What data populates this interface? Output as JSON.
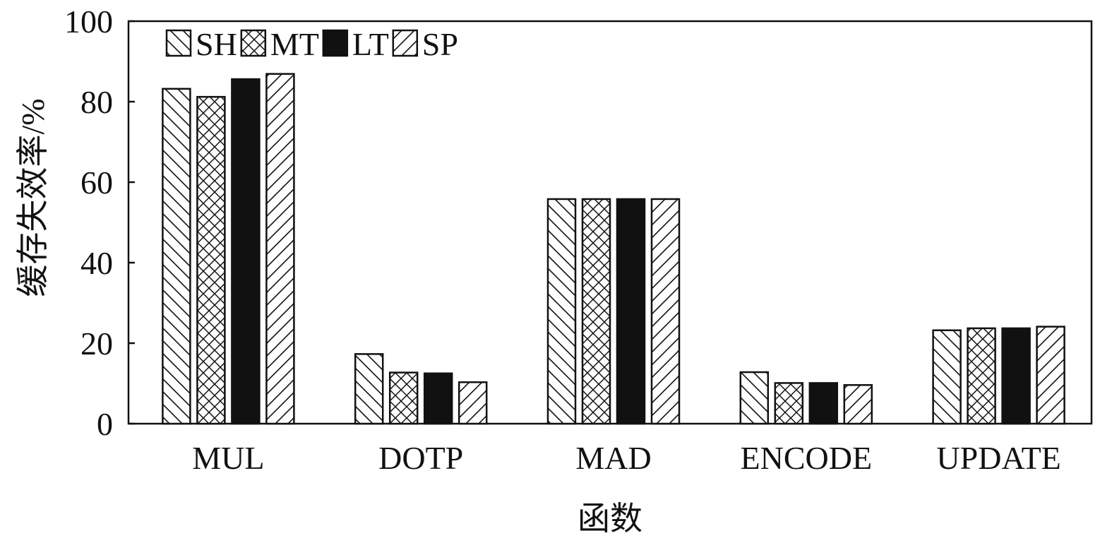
{
  "chart_data": {
    "type": "bar",
    "xlabel": "函数",
    "ylabel": "缓存失效率/%",
    "ylim": [
      0,
      100
    ],
    "yticks": [
      "0",
      "20",
      "40",
      "60",
      "80",
      "100"
    ],
    "grid": false,
    "legend_position": "top-left",
    "categories": [
      "MUL",
      "DOTP",
      "MAD",
      "ENCODE",
      "UPDATE"
    ],
    "series": [
      {
        "name": "SH",
        "pattern": "diagonal-backslash",
        "values": [
          83.2,
          17.3,
          55.8,
          12.8,
          23.2
        ]
      },
      {
        "name": "MT",
        "pattern": "crosshatch",
        "values": [
          81.2,
          12.7,
          55.8,
          10.1,
          23.7
        ]
      },
      {
        "name": "LT",
        "pattern": "solid",
        "values": [
          85.6,
          12.5,
          55.8,
          10.1,
          23.7
        ]
      },
      {
        "name": "SP",
        "pattern": "diagonal-slash",
        "values": [
          86.9,
          10.3,
          55.8,
          9.6,
          24.1
        ]
      }
    ],
    "colors": {
      "fill_dark": "#111111",
      "background": "#ffffff",
      "stroke": "#111111"
    }
  }
}
